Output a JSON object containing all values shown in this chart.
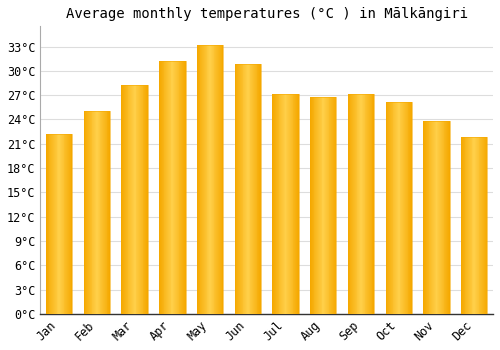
{
  "title": "Average monthly temperatures (°C ) in Mālkāngiri",
  "months": [
    "Jan",
    "Feb",
    "Mar",
    "Apr",
    "May",
    "Jun",
    "Jul",
    "Aug",
    "Sep",
    "Oct",
    "Nov",
    "Dec"
  ],
  "temperatures": [
    22.2,
    25.0,
    28.2,
    31.2,
    33.2,
    30.8,
    27.2,
    26.8,
    27.2,
    26.2,
    23.8,
    21.8
  ],
  "bar_color_light": "#FFD04B",
  "bar_color_dark": "#F5A800",
  "background_color": "#FFFFFF",
  "grid_color": "#DDDDDD",
  "yticks": [
    0,
    3,
    6,
    9,
    12,
    15,
    18,
    21,
    24,
    27,
    30,
    33
  ],
  "ylim": [
    0,
    35.5
  ],
  "title_fontsize": 10,
  "tick_fontsize": 8.5,
  "font_family": "monospace"
}
